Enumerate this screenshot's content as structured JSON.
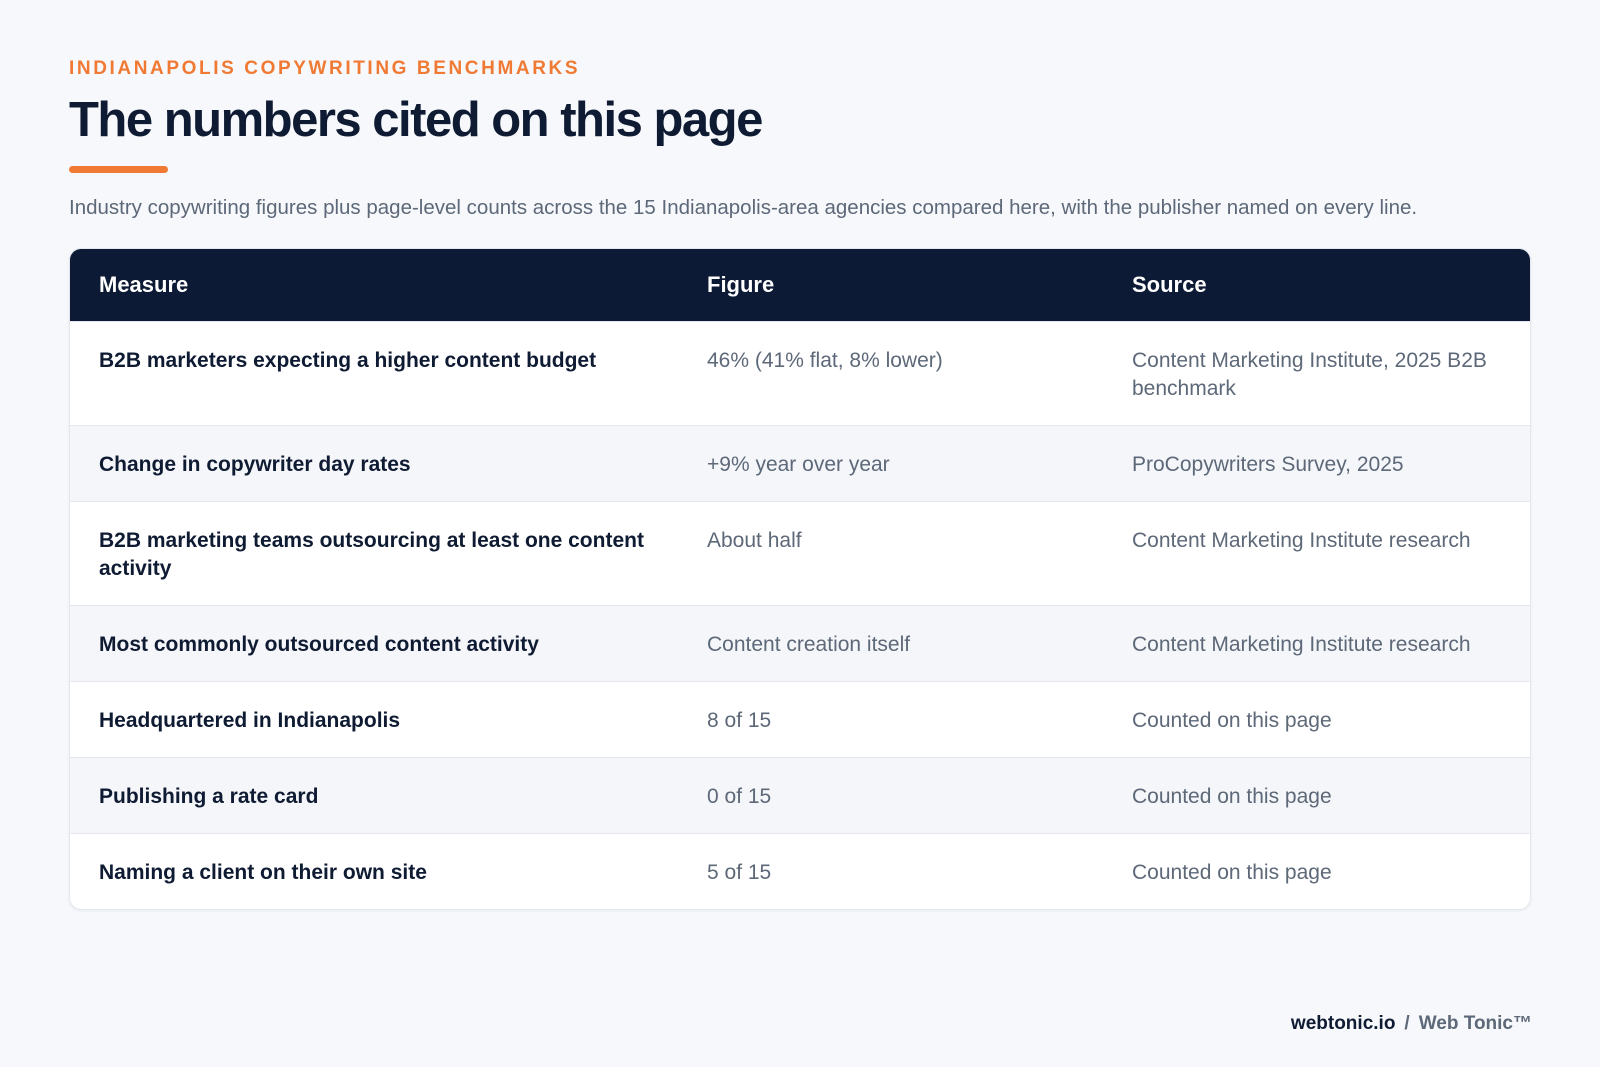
{
  "header": {
    "eyebrow": "INDIANAPOLIS COPYWRITING BENCHMARKS",
    "title": "The numbers cited on this page",
    "subtitle": "Industry copywriting figures plus page-level counts across the 15 Indianapolis-area agencies compared here, with the publisher named on every line."
  },
  "table": {
    "columns": [
      "Measure",
      "Figure",
      "Source"
    ],
    "rows": [
      {
        "measure": "B2B marketers expecting a higher content budget",
        "figure": "46% (41% flat, 8% lower)",
        "source": "Content Marketing Institute, 2025 B2B benchmark"
      },
      {
        "measure": "Change in copywriter day rates",
        "figure": "+9% year over year",
        "source": "ProCopywriters Survey, 2025"
      },
      {
        "measure": "B2B marketing teams outsourcing at least one content activity",
        "figure": "About half",
        "source": "Content Marketing Institute research"
      },
      {
        "measure": "Most commonly outsourced content activity",
        "figure": "Content creation itself",
        "source": "Content Marketing Institute research"
      },
      {
        "measure": "Headquartered in Indianapolis",
        "figure": "8 of 15",
        "source": "Counted on this page"
      },
      {
        "measure": "Publishing a rate card",
        "figure": "0 of 15",
        "source": "Counted on this page"
      },
      {
        "measure": "Naming a client on their own site",
        "figure": "5 of 15",
        "source": "Counted on this page"
      }
    ]
  },
  "footer": {
    "domain": "webtonic.io",
    "separator": "/",
    "brand": "Web Tonic™"
  },
  "colors": {
    "accent": "#f07a34",
    "header_bg": "#0c1a35",
    "text_dark": "#0f1b33",
    "text_muted": "#5d6878",
    "page_bg": "#f6f8fb"
  }
}
